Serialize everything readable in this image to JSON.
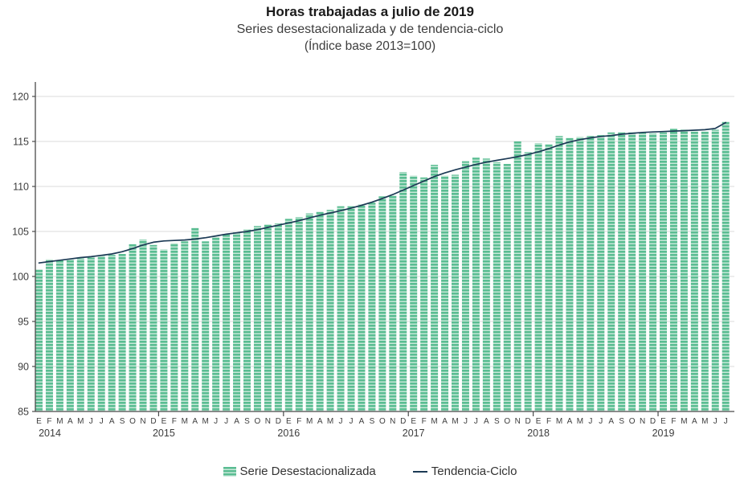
{
  "title": {
    "line1": "Horas trabajadas a julio de 2019",
    "line2": "Series desestacionalizada  y de tendencia-ciclo",
    "line3": "(Índice base 2013=100)"
  },
  "legend": {
    "bar_label": "Serie Desestacionalizada",
    "line_label": "Tendencia-Ciclo"
  },
  "colors": {
    "bar": "#5ABD92",
    "bar_stripe": "#CBE9DB",
    "trend_line": "#1C3A55",
    "grid": "#DBDBDB",
    "axis": "#4a4a4a",
    "tick_text": "#3c3c3c"
  },
  "chart_data": {
    "type": "bar",
    "overlay": "line",
    "start_month": "Enero 2014",
    "end_month": "Julio 2019",
    "month_letters": [
      "E",
      "F",
      "M",
      "A",
      "M",
      "J",
      "J",
      "A",
      "S",
      "O",
      "N",
      "D"
    ],
    "years": [
      "2014",
      "2015",
      "2016",
      "2017",
      "2018",
      "2019"
    ],
    "ylim": [
      85,
      120
    ],
    "yticks": [
      85,
      90,
      95,
      100,
      105,
      110,
      115,
      120
    ],
    "grid": true,
    "legend_position": "bottom",
    "series": [
      {
        "name": "Serie Desestacionalizada",
        "type": "bar",
        "values": [
          100.8,
          101.9,
          101.8,
          101.9,
          102.0,
          102.1,
          102.3,
          102.4,
          102.5,
          103.6,
          104.1,
          103.5,
          103.0,
          103.7,
          103.9,
          105.4,
          103.9,
          104.4,
          104.7,
          104.9,
          105.2,
          105.6,
          105.8,
          105.9,
          106.4,
          106.6,
          107.0,
          107.2,
          107.4,
          107.8,
          107.8,
          108.0,
          108.2,
          108.9,
          109.0,
          111.6,
          111.2,
          111.0,
          112.4,
          111.2,
          111.3,
          112.8,
          113.2,
          113.1,
          112.7,
          112.5,
          115.0,
          113.8,
          114.8,
          114.7,
          115.6,
          115.4,
          115.5,
          115.6,
          115.7,
          116.0,
          116.0,
          116.0,
          116.0,
          115.9,
          116.0,
          116.4,
          116.3,
          116.1,
          116.1,
          116.3,
          117.2
        ]
      },
      {
        "name": "Tendencia-Ciclo",
        "type": "line",
        "values": [
          101.5,
          101.65,
          101.8,
          101.95,
          102.1,
          102.2,
          102.35,
          102.5,
          102.75,
          103.1,
          103.5,
          103.8,
          103.95,
          104.0,
          104.05,
          104.15,
          104.3,
          104.5,
          104.7,
          104.85,
          105.0,
          105.2,
          105.45,
          105.7,
          105.95,
          106.2,
          106.5,
          106.8,
          107.05,
          107.3,
          107.6,
          107.9,
          108.25,
          108.65,
          109.1,
          109.6,
          110.1,
          110.6,
          111.1,
          111.5,
          111.85,
          112.15,
          112.45,
          112.7,
          112.9,
          113.1,
          113.3,
          113.55,
          113.85,
          114.2,
          114.6,
          114.95,
          115.2,
          115.4,
          115.55,
          115.65,
          115.8,
          115.9,
          116.0,
          116.05,
          116.1,
          116.15,
          116.2,
          116.25,
          116.3,
          116.45,
          117.1
        ]
      }
    ]
  }
}
